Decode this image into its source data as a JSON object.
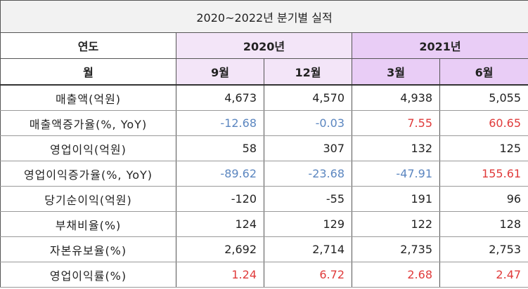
{
  "title": "2020~2022년 분기별 실적",
  "header": {
    "row_label": "연도",
    "years": [
      "2020년",
      "2021년"
    ],
    "month_label": "월",
    "months": [
      "9월",
      "12월",
      "3월",
      "6월"
    ]
  },
  "table": {
    "rows": [
      {
        "label": "매출액(억원)",
        "values": [
          "4,673",
          "4,570",
          "4,938",
          "5,055"
        ],
        "colors": [
          "#222222",
          "#222222",
          "#222222",
          "#222222"
        ]
      },
      {
        "label": "매출액증가율(%, YoY)",
        "values": [
          "-12.68",
          "-0.03",
          "7.55",
          "60.65"
        ],
        "colors": [
          "#5b86c0",
          "#5b86c0",
          "#e03a3a",
          "#e03a3a"
        ]
      },
      {
        "label": "영업이익(억원)",
        "values": [
          "58",
          "307",
          "132",
          "125"
        ],
        "colors": [
          "#222222",
          "#222222",
          "#222222",
          "#222222"
        ]
      },
      {
        "label": "영업이익증가율(%, YoY)",
        "values": [
          "-89.62",
          "-23.68",
          "-47.91",
          "155.61"
        ],
        "colors": [
          "#5b86c0",
          "#5b86c0",
          "#5b86c0",
          "#e03a3a"
        ]
      },
      {
        "label": "당기순이익(억원)",
        "values": [
          "-120",
          "-55",
          "191",
          "96"
        ],
        "colors": [
          "#222222",
          "#222222",
          "#222222",
          "#222222"
        ]
      },
      {
        "label": "부채비율(%)",
        "values": [
          "124",
          "129",
          "122",
          "128"
        ],
        "colors": [
          "#222222",
          "#222222",
          "#222222",
          "#222222"
        ]
      },
      {
        "label": "자본유보율(%)",
        "values": [
          "2,692",
          "2,714",
          "2,735",
          "2,753"
        ],
        "colors": [
          "#222222",
          "#222222",
          "#222222",
          "#222222"
        ]
      },
      {
        "label": "영업이익률(%)",
        "values": [
          "1.24",
          "6.72",
          "2.68",
          "2.47"
        ],
        "colors": [
          "#e03a3a",
          "#e03a3a",
          "#e03a3a",
          "#e03a3a"
        ]
      }
    ]
  }
}
